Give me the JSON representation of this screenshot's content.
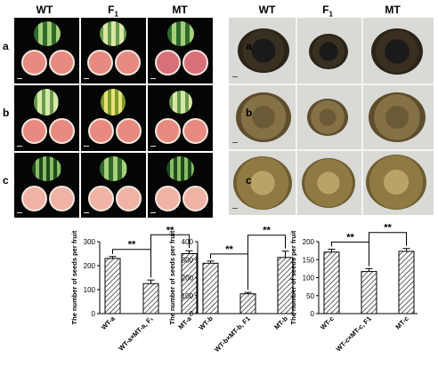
{
  "figure": {
    "left_panel": {
      "columns": [
        "WT",
        "F",
        "MT"
      ],
      "f_subscript": "1",
      "rows": [
        "a",
        "b",
        "c"
      ]
    },
    "right_panel": {
      "columns": [
        "WT",
        "F",
        "MT"
      ],
      "f_subscript": "1",
      "rows": [
        "a",
        "b",
        "c"
      ]
    }
  },
  "chart_data": [
    {
      "type": "bar",
      "ylabel": "The number of seeds per fruit",
      "ylim": [
        0,
        300
      ],
      "yticks": [
        "0",
        "100",
        "200",
        "300"
      ],
      "tick_values": [
        0,
        100,
        200,
        300
      ],
      "categories": [
        "WT-a",
        "WT-a×MT-a, F₁",
        "MT-a"
      ],
      "values": [
        230,
        125,
        250
      ],
      "errors": [
        8,
        15,
        12
      ],
      "significance": [
        "**",
        "**"
      ]
    },
    {
      "type": "bar",
      "ylabel": "The number of seeds per fruit",
      "ylim": [
        0,
        400
      ],
      "yticks": [
        "0",
        "100",
        "200",
        "300",
        "400"
      ],
      "tick_values": [
        0,
        100,
        200,
        300,
        400
      ],
      "categories": [
        "WT-b",
        "WT-b×MT-b, F1",
        "MT-b"
      ],
      "values": [
        280,
        110,
        312
      ],
      "errors": [
        12,
        8,
        35
      ],
      "significance": [
        "**",
        "**"
      ]
    },
    {
      "type": "bar",
      "ylabel": "The number of seeds per fruit",
      "ylim": [
        0,
        200
      ],
      "yticks": [
        "0",
        "50",
        "100",
        "150",
        "200"
      ],
      "tick_values": [
        0,
        50,
        100,
        150,
        200
      ],
      "categories": [
        "WT-c",
        "WT-c×MT-c, F1",
        "MT-c"
      ],
      "values": [
        171,
        117,
        173
      ],
      "errors": [
        8,
        8,
        8
      ],
      "significance": [
        "**",
        "**"
      ]
    }
  ]
}
